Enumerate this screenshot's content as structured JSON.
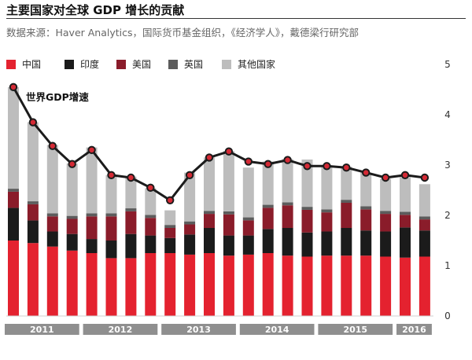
{
  "header": {
    "title": "主要国家对全球 GDP 增长的贡献",
    "source": "数据来源：Haver Analytics，国际货币基金组织，《经济学人》，戴德梁行研究部"
  },
  "colors": {
    "china": "#e4222f",
    "india": "#1b1b1b",
    "us": "#8a1c2a",
    "uk": "#5c5c5c",
    "others": "#bdbdbd",
    "line": "#1b1b1b",
    "marker_fill": "#d42a35",
    "year_band": "#8f8f8f"
  },
  "legend": [
    {
      "label": "中国",
      "color": "#e4222f"
    },
    {
      "label": "印度",
      "color": "#1b1b1b"
    },
    {
      "label": "美国",
      "color": "#8a1c2a"
    },
    {
      "label": "英国",
      "color": "#5c5c5c"
    },
    {
      "label": "其他国家",
      "color": "#bdbdbd"
    }
  ],
  "chart_data": {
    "type": "bar",
    "stacked": true,
    "ylim": [
      0,
      5
    ],
    "yticks": [
      "0",
      "1",
      "2",
      "3",
      "4",
      "5"
    ],
    "y_axis_side": "right",
    "grid": false,
    "legend_position": "top",
    "year_groups": [
      {
        "label": "2011",
        "bars": 4
      },
      {
        "label": "2012",
        "bars": 4
      },
      {
        "label": "2013",
        "bars": 4
      },
      {
        "label": "2014",
        "bars": 4
      },
      {
        "label": "2015",
        "bars": 4
      },
      {
        "label": "2016",
        "bars": 2
      }
    ],
    "series": [
      {
        "name": "中国",
        "values": [
          1.5,
          1.45,
          1.38,
          1.3,
          1.25,
          1.15,
          1.15,
          1.25,
          1.25,
          1.22,
          1.25,
          1.2,
          1.22,
          1.25,
          1.2,
          1.18,
          1.2,
          1.2,
          1.2,
          1.18,
          1.16,
          1.18
        ]
      },
      {
        "name": "印度",
        "values": [
          0.65,
          0.45,
          0.3,
          0.33,
          0.28,
          0.35,
          0.48,
          0.35,
          0.3,
          0.4,
          0.5,
          0.4,
          0.38,
          0.48,
          0.55,
          0.48,
          0.48,
          0.55,
          0.5,
          0.5,
          0.6,
          0.52
        ]
      },
      {
        "name": "美国",
        "values": [
          0.32,
          0.32,
          0.3,
          0.3,
          0.45,
          0.48,
          0.45,
          0.35,
          0.2,
          0.2,
          0.28,
          0.42,
          0.3,
          0.42,
          0.45,
          0.45,
          0.38,
          0.5,
          0.42,
          0.35,
          0.25,
          0.22
        ]
      },
      {
        "name": "英国",
        "values": [
          0.06,
          0.06,
          0.06,
          0.06,
          0.06,
          0.06,
          0.06,
          0.06,
          0.06,
          0.06,
          0.06,
          0.06,
          0.06,
          0.06,
          0.06,
          0.06,
          0.06,
          0.06,
          0.06,
          0.06,
          0.06,
          0.06
        ]
      },
      {
        "name": "其他国家",
        "values": [
          2.02,
          1.57,
          1.36,
          1.04,
          1.31,
          0.76,
          0.63,
          0.53,
          0.29,
          0.97,
          1.06,
          1.2,
          0.99,
          0.86,
          0.86,
          0.94,
          0.84,
          0.66,
          0.67,
          0.64,
          0.69,
          0.64
        ]
      }
    ],
    "line_series": {
      "name": "世界GDP增速",
      "values": [
        4.55,
        3.85,
        3.38,
        3.02,
        3.3,
        2.8,
        2.75,
        2.55,
        2.3,
        2.8,
        3.15,
        3.27,
        3.07,
        3.02,
        3.1,
        2.98,
        2.98,
        2.95,
        2.85,
        2.75,
        2.8,
        2.75
      ]
    }
  }
}
